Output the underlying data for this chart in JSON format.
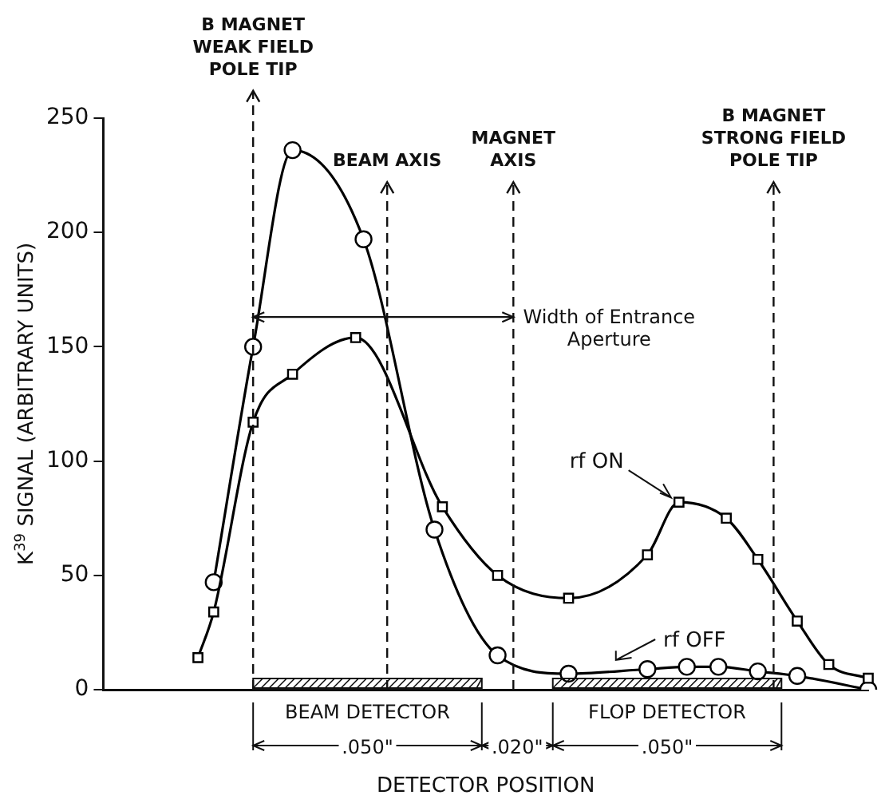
{
  "chart_data": {
    "type": "line",
    "xlabel": "DETECTOR POSITION",
    "ylabel": "K$^{39}$ SIGNAL (ARBITRARY UNITS)",
    "categories": [
      null,
      null,
      null,
      null,
      null,
      null,
      null,
      null,
      null,
      null,
      null,
      null,
      null,
      null,
      null,
      null,
      null,
      null,
      null,
      null,
      null,
      null,
      null,
      null,
      null,
      null,
      null,
      null,
      null,
      null,
      null,
      null,
      null,
      null,
      null,
      null,
      null,
      null,
      null,
      null,
      null,
      null,
      null,
      null,
      null,
      null,
      null,
      null,
      null,
      null,
      null,
      null,
      null,
      null,
      null,
      null,
      null,
      null,
      null,
      null,
      null,
      null,
      null,
      null,
      null,
      null,
      null,
      null,
      null,
      null,
      null,
      null,
      null,
      null,
      null,
      null,
      null,
      null,
      null,
      null,
      null,
      null,
      null,
      null,
      null,
      null,
      null,
      null,
      null,
      null,
      null,
      null,
      null,
      null,
      null,
      null,
      null,
      null
    ],
    "ylim": [
      0,
      250
    ],
    "yticks": [
      0,
      50,
      100,
      150,
      200,
      250
    ],
    "grid": false,
    "legend": false,
    "tick_labels": "y",
    "line_style": "solid",
    "series": [
      {
        "name": "rf ON",
        "color": "#000000",
        "marker": "square",
        "values": [
          null,
          null,
          null,
          null,
          null,
          null,
          null,
          null,
          null,
          null,
          null,
          null,
          14,
          null,
          34,
          null,
          null,
          null,
          null,
          117,
          null,
          null,
          null,
          null,
          138,
          null,
          null,
          null,
          null,
          null,
          null,
          null,
          154,
          null,
          null,
          null,
          null,
          null,
          null,
          null,
          null,
          null,
          null,
          80,
          null,
          null,
          null,
          null,
          null,
          null,
          50,
          null,
          null,
          null,
          null,
          null,
          null,
          null,
          null,
          40,
          null,
          null,
          null,
          null,
          null,
          null,
          null,
          null,
          null,
          59,
          null,
          null,
          null,
          82,
          null,
          null,
          null,
          null,
          null,
          75,
          null,
          null,
          null,
          57,
          null,
          null,
          null,
          null,
          30,
          null,
          null,
          null,
          11,
          null,
          null,
          null,
          null,
          5
        ]
      },
      {
        "name": "rf OFF",
        "color": "#000000",
        "marker": "circle",
        "values": [
          null,
          null,
          null,
          null,
          null,
          null,
          null,
          null,
          null,
          null,
          null,
          null,
          null,
          null,
          47,
          null,
          null,
          null,
          null,
          150,
          null,
          null,
          null,
          null,
          236,
          null,
          null,
          null,
          null,
          null,
          null,
          null,
          null,
          197,
          null,
          null,
          null,
          null,
          null,
          null,
          null,
          null,
          70,
          null,
          null,
          null,
          null,
          null,
          null,
          null,
          15,
          null,
          null,
          null,
          null,
          null,
          null,
          null,
          null,
          7,
          null,
          null,
          null,
          null,
          null,
          null,
          null,
          null,
          null,
          9,
          null,
          null,
          null,
          null,
          10,
          null,
          null,
          null,
          10,
          null,
          null,
          null,
          null,
          8,
          null,
          null,
          null,
          null,
          6,
          null,
          null,
          null,
          null,
          null,
          null,
          null,
          null,
          0
        ]
      }
    ],
    "annotations": [
      "B MAGNET\nWEAK FIELD\nPOLE TIP",
      "BEAM AXIS",
      "MAGNET\nAXIS",
      "B MAGNET\nSTRONG FIELD\nPOLE TIP",
      "Width of Entrance\nAperture",
      "BEAM DETECTOR",
      "FLOP DETECTOR",
      ".050\"",
      ".020\"",
      ".050\""
    ]
  }
}
